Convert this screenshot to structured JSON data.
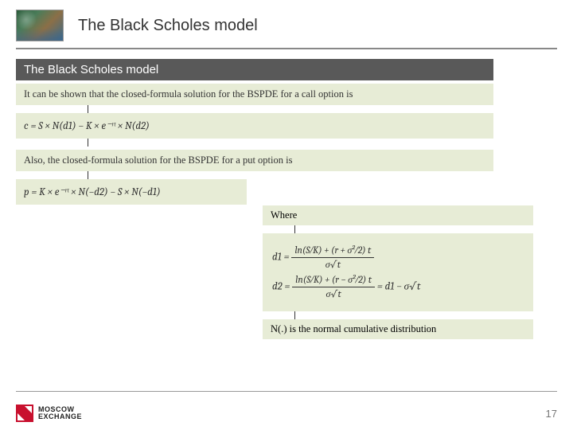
{
  "header": {
    "title": "The Black Scholes model"
  },
  "section": {
    "title": "The Black Scholes model"
  },
  "blocks": {
    "intro_call": "It can be shown that the closed-formula solution for the BSPDE for a call option is",
    "call_formula": "c = S × N(d1) − K × e⁻ʳᵗ × N(d2)",
    "intro_put": "Also,  the closed-formula solution for the BSPDE for a put option is",
    "put_formula": "p = K × e⁻ʳᵗ × N(−d2) − S × N(−d1)"
  },
  "right": {
    "where": "Where",
    "d1_lhs": "d1 =",
    "d1_num": "ln(S⁄K) + (r + σ²⁄2) t",
    "d1_den": "σ√t",
    "d2_lhs": "d2 =",
    "d2_num": "ln(S⁄K) + (r − σ²⁄2) t",
    "d2_den": "σ√t",
    "d2_tail": " = d1 − σ√t",
    "note": "N(.) is the normal cumulative distribution"
  },
  "footer": {
    "logo_line1": "MOSCOW",
    "logo_line2": "EXCHANGE",
    "page": "17"
  },
  "colors": {
    "section_bg": "#595959",
    "block_bg": "#e7ecd6",
    "logo_red": "#c8102e"
  }
}
